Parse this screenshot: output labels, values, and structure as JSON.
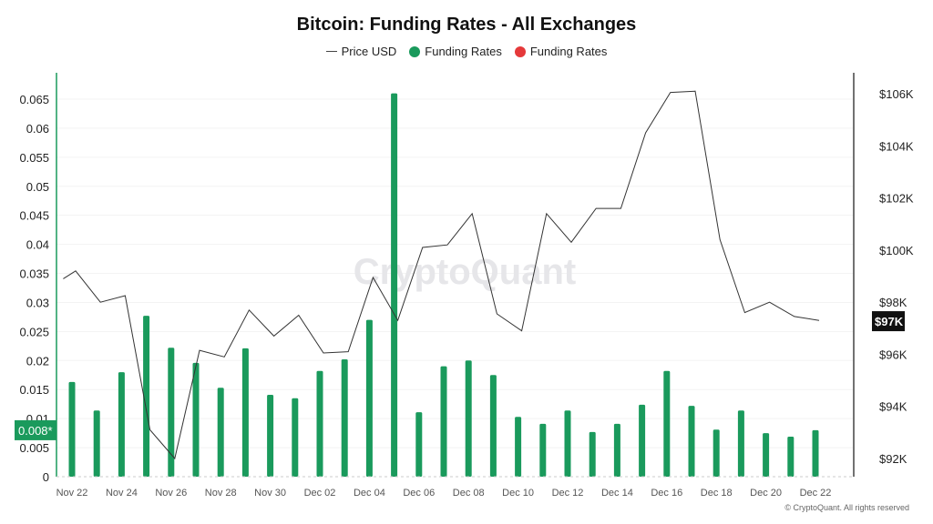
{
  "title": "Bitcoin: Funding Rates - All Exchanges",
  "legend": [
    {
      "label": "Price USD",
      "type": "line",
      "color": "#333333"
    },
    {
      "label": "Funding Rates",
      "type": "dot",
      "color": "#1a9a5c"
    },
    {
      "label": "Funding Rates",
      "type": "dot",
      "color": "#e5393a"
    }
  ],
  "watermark": "CryptoQuant",
  "footer": "© CryptoQuant. All rights reserved",
  "chart_data": {
    "type": "bar",
    "title": "Bitcoin: Funding Rates - All Exchanges",
    "categories": [
      "Nov 22",
      "Nov 23",
      "Nov 24",
      "Nov 25",
      "Nov 26",
      "Nov 27",
      "Nov 28",
      "Nov 29",
      "Nov 30",
      "Dec 01",
      "Dec 02",
      "Dec 03",
      "Dec 04",
      "Dec 05",
      "Dec 06",
      "Dec 07",
      "Dec 08",
      "Dec 09",
      "Dec 10",
      "Dec 11",
      "Dec 12",
      "Dec 13",
      "Dec 14",
      "Dec 15",
      "Dec 16",
      "Dec 17",
      "Dec 18",
      "Dec 19",
      "Dec 20",
      "Dec 21",
      "Dec 22"
    ],
    "x_tick_labels": [
      "Nov 22",
      "Nov 24",
      "Nov 26",
      "Nov 28",
      "Nov 30",
      "Dec 02",
      "Dec 04",
      "Dec 06",
      "Dec 08",
      "Dec 10",
      "Dec 12",
      "Dec 14",
      "Dec 16",
      "Dec 18",
      "Dec 20",
      "Dec 22"
    ],
    "series": [
      {
        "name": "Funding Rates",
        "type": "bar",
        "axis": "left",
        "color": "#1a9a5c",
        "values": [
          0.0163,
          0.0114,
          0.018,
          0.0277,
          0.0222,
          0.0196,
          0.0153,
          0.0221,
          0.0141,
          0.0135,
          0.0182,
          0.0202,
          0.027,
          0.066,
          0.0111,
          0.019,
          0.02,
          0.0175,
          0.0103,
          0.0091,
          0.0114,
          0.0077,
          0.0091,
          0.0124,
          0.0182,
          0.0122,
          0.0081,
          0.0114,
          0.0075,
          0.0069,
          0.008
        ]
      },
      {
        "name": "Price USD",
        "type": "line",
        "axis": "right",
        "color": "#333333",
        "unit": "K USD",
        "x": [
          "Nov 21",
          "Nov 22",
          "Nov 23",
          "Nov 24",
          "Nov 25",
          "Nov 26",
          "Nov 27",
          "Nov 28",
          "Nov 29",
          "Nov 30",
          "Dec 01",
          "Dec 02",
          "Dec 03",
          "Dec 04",
          "Dec 05",
          "Dec 06",
          "Dec 07",
          "Dec 08",
          "Dec 09",
          "Dec 10",
          "Dec 11",
          "Dec 12",
          "Dec 13",
          "Dec 14",
          "Dec 15",
          "Dec 16",
          "Dec 17",
          "Dec 18",
          "Dec 19",
          "Dec 20",
          "Dec 21",
          "Dec 22"
        ],
        "values": [
          98.9,
          99.2,
          98.0,
          98.25,
          93.1,
          92.0,
          96.15,
          95.9,
          97.7,
          96.7,
          97.5,
          96.05,
          96.1,
          98.95,
          97.3,
          100.1,
          100.2,
          101.4,
          97.55,
          96.9,
          101.4,
          100.3,
          101.6,
          101.6,
          104.5,
          106.05,
          106.1,
          100.4,
          97.6,
          98.0,
          97.45,
          97.3
        ]
      }
    ],
    "left_axis": {
      "ylim": [
        0,
        0.069
      ],
      "ticks": [
        "0",
        "0.005",
        "0.01",
        "0.015",
        "0.02",
        "0.025",
        "0.03",
        "0.035",
        "0.04",
        "0.045",
        "0.05",
        "0.055",
        "0.06",
        "0.065"
      ],
      "highlight_label": "0.008*",
      "highlight_value": 0.008,
      "highlight_color": "#1a9a5c"
    },
    "right_axis": {
      "ylim": [
        91.3,
        106.8
      ],
      "ticks": [
        "$92K",
        "$94K",
        "$96K",
        "$98K",
        "$100K",
        "$102K",
        "$104K",
        "$106K"
      ],
      "tick_values": [
        92,
        94,
        96,
        98,
        100,
        102,
        104,
        106
      ],
      "highlight_label": "$97K",
      "highlight_value": 97.27,
      "highlight_color": "#111111"
    },
    "grid": true
  }
}
